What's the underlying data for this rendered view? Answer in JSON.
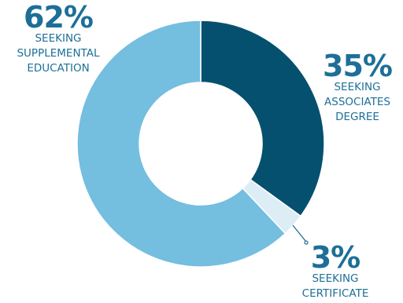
{
  "chart_data": {
    "type": "pie",
    "donut": true,
    "start": "top",
    "direction": "clockwise",
    "slices": [
      {
        "label": "SEEKING ASSOCIATES DEGREE",
        "pct_label": "35%",
        "value": 35,
        "color": "#05506f"
      },
      {
        "label": "SEEKING CERTIFICATE",
        "pct_label": "3%",
        "value": 3,
        "color": "#dcedf6"
      },
      {
        "label": "SEEKING SUPPLEMENTAL EDUCATION",
        "pct_label": "62%",
        "value": 62,
        "color": "#74bedf"
      }
    ],
    "legend": "none",
    "text_color": "#1d6f97",
    "leader_color": "#1d6f97"
  },
  "callouts": [
    {
      "pct": "62%",
      "label": "SEEKING\nSUPPLEMENTAL\nEDUCATION"
    },
    {
      "pct": "35%",
      "label": "SEEKING\nASSOCIATES\nDEGREE"
    },
    {
      "pct": "3%",
      "label": "SEEKING\nCERTIFICATE"
    }
  ]
}
